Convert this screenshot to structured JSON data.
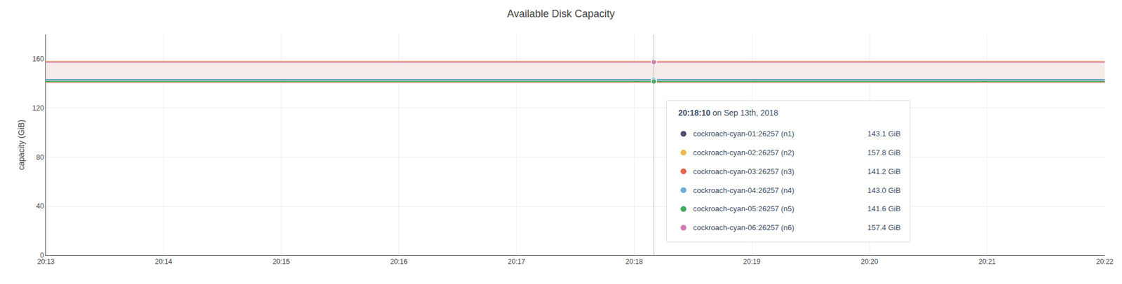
{
  "chart_data": {
    "type": "line",
    "title": "Available Disk Capacity",
    "y_label": "capacity (GiB)",
    "x": [
      0,
      5.167,
      9
    ],
    "xlim": [
      0,
      9
    ],
    "xticks": [
      {
        "value": 0,
        "label": "20:13"
      },
      {
        "value": 1,
        "label": "20:14"
      },
      {
        "value": 2,
        "label": "20:15"
      },
      {
        "value": 3,
        "label": "20:16"
      },
      {
        "value": 4,
        "label": "20:17"
      },
      {
        "value": 5,
        "label": "20:18"
      },
      {
        "value": 6,
        "label": "20:19"
      },
      {
        "value": 7,
        "label": "20:20"
      },
      {
        "value": 8,
        "label": "20:21"
      },
      {
        "value": 9,
        "label": "20:22"
      }
    ],
    "ylim": [
      0,
      180
    ],
    "yticks": [
      0,
      40,
      80,
      120,
      160
    ],
    "grid": true,
    "series": [
      {
        "name": "cockroach-cyan-01:26257 (n1)",
        "color": "#4a4f6e",
        "values": [
          143.1,
          143.1,
          143.1
        ],
        "value_labels": [
          null,
          "143.1 GiB",
          null
        ]
      },
      {
        "name": "cockroach-cyan-02:26257 (n2)",
        "color": "#e8b84b",
        "values": [
          157.8,
          157.8,
          157.8
        ],
        "value_labels": [
          null,
          "157.8 GiB",
          null
        ]
      },
      {
        "name": "cockroach-cyan-03:26257 (n3)",
        "color": "#e8604a",
        "values": [
          141.2,
          141.2,
          141.2
        ],
        "value_labels": [
          null,
          "141.2 GiB",
          null
        ]
      },
      {
        "name": "cockroach-cyan-04:26257 (n4)",
        "color": "#6baed6",
        "values": [
          143.0,
          143.0,
          143.0
        ],
        "value_labels": [
          null,
          "143.0 GiB",
          null
        ]
      },
      {
        "name": "cockroach-cyan-05:26257 (n5)",
        "color": "#41ab5d",
        "values": [
          141.6,
          141.6,
          141.6
        ],
        "value_labels": [
          null,
          "141.6 GiB",
          null
        ]
      },
      {
        "name": "cockroach-cyan-06:26257 (n6)",
        "color": "#d67ab1",
        "values": [
          157.4,
          157.4,
          157.4
        ],
        "value_labels": [
          null,
          "157.4 GiB",
          null
        ]
      }
    ],
    "bands": [
      {
        "from": 141.2,
        "to": 157.8,
        "color": "#f5ebe8"
      }
    ],
    "annotations": [
      {
        "text": "20:18:10 on Sep 13th, 2018",
        "x": 5.167
      }
    ]
  }
}
